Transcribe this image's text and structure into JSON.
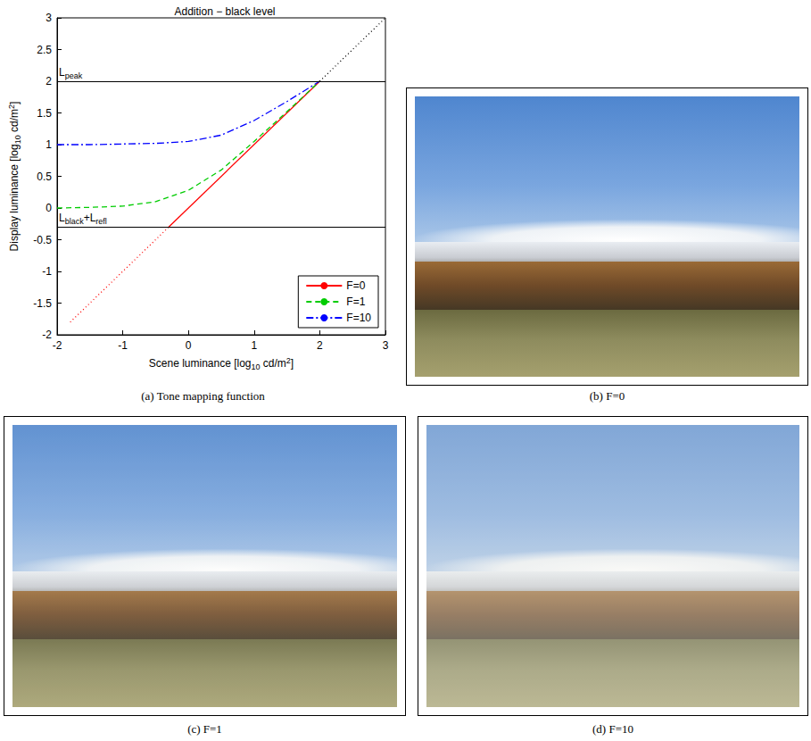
{
  "chart_data": {
    "type": "line",
    "title": "Addition − black level",
    "x_label": [
      {
        "text": "Scene luminance [log"
      },
      {
        "text": "10",
        "sub": true
      },
      {
        "text": " cd/m"
      },
      {
        "text": "2",
        "sup": true
      },
      {
        "text": "]"
      }
    ],
    "y_label": [
      {
        "text": "Display luminance [log"
      },
      {
        "text": "10",
        "sub": true
      },
      {
        "text": " cd/m"
      },
      {
        "text": "2",
        "sup": true
      },
      {
        "text": "]"
      }
    ],
    "xlim": [
      -2,
      3
    ],
    "ylim": [
      -2,
      3
    ],
    "xticks": [
      -2,
      -1,
      0,
      1,
      2,
      3
    ],
    "yticks": [
      -2,
      -1.5,
      -1,
      -0.5,
      0,
      0.5,
      1,
      1.5,
      2,
      2.5,
      3
    ],
    "legend": "lower right",
    "series": [
      {
        "name": "F=0",
        "color": "#ff0000",
        "line_style": "solid",
        "x": [
          -0.3,
          2
        ],
        "values": [
          -0.3,
          2
        ]
      },
      {
        "name": "F=1",
        "color": "#00cc00",
        "line_style": "dashed",
        "x": [
          -2,
          -1.5,
          -1,
          -0.5,
          0,
          0.5,
          1,
          1.5,
          2
        ],
        "values": [
          0,
          0.01,
          0.03,
          0.1,
          0.28,
          0.6,
          1.05,
          1.52,
          2
        ]
      },
      {
        "name": "F=10",
        "color": "#0000ff",
        "line_style": "dashdot",
        "x": [
          -2,
          -1.5,
          -1,
          -0.5,
          0,
          0.5,
          1,
          1.5,
          2
        ],
        "values": [
          1,
          1,
          1.01,
          1.02,
          1.05,
          1.15,
          1.38,
          1.68,
          2
        ]
      }
    ],
    "reference_lines": [
      {
        "color": "#ff0000",
        "line_style": "dotted",
        "x": [
          -1.8,
          -0.3
        ],
        "values": [
          -1.8,
          -0.3
        ]
      },
      {
        "color": "#000000",
        "line_style": "dotted",
        "x": [
          2,
          3
        ],
        "values": [
          2,
          3
        ]
      }
    ],
    "hlines": [
      {
        "value": 2,
        "color": "#000000",
        "label": [
          {
            "text": "L"
          },
          {
            "text": "peak",
            "sub": true
          }
        ]
      },
      {
        "value": -0.3,
        "color": "#000000",
        "label": [
          {
            "text": "L"
          },
          {
            "text": "black",
            "sub": true
          },
          {
            "text": "+L"
          },
          {
            "text": "refl",
            "sub": true
          }
        ]
      }
    ]
  },
  "captions": [
    "(a) Tone mapping function",
    "(b) F=0",
    "(c) F=1",
    "(d) F=10"
  ]
}
